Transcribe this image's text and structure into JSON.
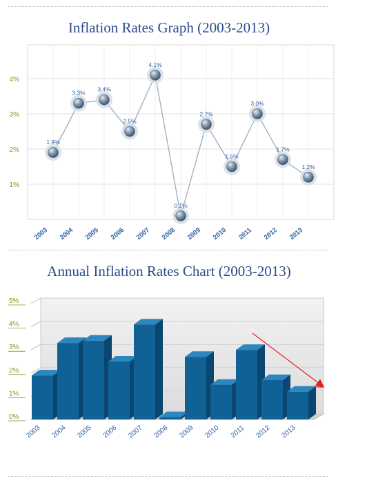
{
  "chart_data": [
    {
      "type": "line",
      "title": "Inflation Rates Graph (2003-2013)",
      "categories": [
        "2003",
        "2004",
        "2005",
        "2006",
        "2007",
        "2008",
        "2009",
        "2010",
        "2011",
        "2012",
        "2013"
      ],
      "values": [
        1.9,
        3.3,
        3.4,
        2.5,
        4.1,
        0.1,
        2.7,
        1.5,
        3.0,
        1.7,
        1.2
      ],
      "data_labels": [
        "1.9%",
        "3.3%",
        "3.4%",
        "2.5%",
        "4.1%",
        "0.1%",
        "2.7%",
        "1.5%",
        "3.0%",
        "1.7%",
        "1.2%"
      ],
      "ytick_labels": [
        "1%",
        "2%",
        "3%",
        "4%"
      ],
      "yticks": [
        1,
        2,
        3,
        4
      ],
      "ylim": [
        0,
        5
      ],
      "grid": true,
      "colors": {
        "line": "#9fb2c3",
        "marker": "#5d7489",
        "marker_halo": "#d6dde4",
        "tick_label": "#7a9a1a",
        "data_label": "#2f5f9e",
        "category_label": "#2f5f9e"
      }
    },
    {
      "type": "bar",
      "title": "Annual Inflation Rates Chart (2003-2013)",
      "categories": [
        "2003",
        "2004",
        "2005",
        "2006",
        "2007",
        "2008",
        "2009",
        "2010",
        "2011",
        "2012",
        "2013"
      ],
      "values": [
        1.9,
        3.3,
        3.4,
        2.5,
        4.1,
        0.1,
        2.7,
        1.5,
        3.0,
        1.7,
        1.2
      ],
      "ytick_labels": [
        "0%",
        "1%",
        "2%",
        "3%",
        "4%",
        "5%"
      ],
      "yticks": [
        0,
        1,
        2,
        3,
        4,
        5
      ],
      "ylim": [
        0,
        5
      ],
      "grid": true,
      "colors": {
        "bar_front": "#0f6196",
        "bar_side": "#0a4670",
        "bar_top": "#2d86bf",
        "tick_label": "#7a9a1a",
        "category_label": "#2f5f9e",
        "arrow": "#e02020",
        "panel": "#ebebeb"
      }
    }
  ]
}
